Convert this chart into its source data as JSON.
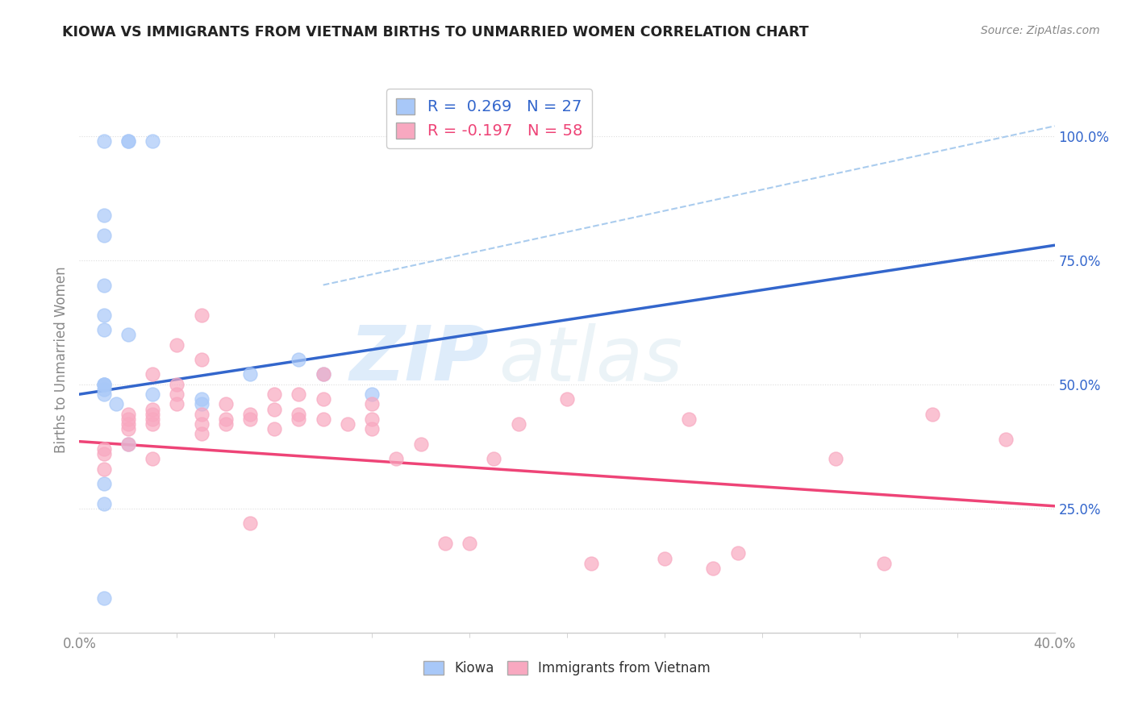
{
  "title": "KIOWA VS IMMIGRANTS FROM VIETNAM BIRTHS TO UNMARRIED WOMEN CORRELATION CHART",
  "source": "Source: ZipAtlas.com",
  "ylabel": "Births to Unmarried Women",
  "right_yticks": [
    "25.0%",
    "50.0%",
    "75.0%",
    "100.0%"
  ],
  "right_ytick_vals": [
    0.25,
    0.5,
    0.75,
    1.0
  ],
  "kiowa_color": "#a8c8f8",
  "vietnam_color": "#f8a8c0",
  "kiowa_line_color": "#3366cc",
  "vietnam_line_color": "#ee4477",
  "dashed_line_color": "#aaccee",
  "watermark_text": "ZIP",
  "watermark_text2": "atlas",
  "kiowa_x": [
    0.01,
    0.02,
    0.02,
    0.03,
    0.01,
    0.01,
    0.01,
    0.01,
    0.01,
    0.02,
    0.01,
    0.01,
    0.01,
    0.01,
    0.01,
    0.03,
    0.05,
    0.05,
    0.07,
    0.09,
    0.1,
    0.12,
    0.015,
    0.02,
    0.01,
    0.01,
    0.01
  ],
  "kiowa_y": [
    0.99,
    0.99,
    0.99,
    0.99,
    0.84,
    0.8,
    0.7,
    0.64,
    0.61,
    0.6,
    0.5,
    0.5,
    0.5,
    0.49,
    0.48,
    0.48,
    0.47,
    0.46,
    0.52,
    0.55,
    0.52,
    0.48,
    0.46,
    0.38,
    0.3,
    0.26,
    0.07
  ],
  "vietnam_x": [
    0.01,
    0.01,
    0.01,
    0.02,
    0.02,
    0.02,
    0.02,
    0.02,
    0.03,
    0.03,
    0.03,
    0.03,
    0.03,
    0.03,
    0.04,
    0.04,
    0.04,
    0.04,
    0.05,
    0.05,
    0.05,
    0.05,
    0.05,
    0.06,
    0.06,
    0.06,
    0.07,
    0.07,
    0.07,
    0.08,
    0.08,
    0.08,
    0.09,
    0.09,
    0.09,
    0.1,
    0.1,
    0.1,
    0.11,
    0.12,
    0.12,
    0.12,
    0.13,
    0.14,
    0.15,
    0.16,
    0.17,
    0.18,
    0.2,
    0.21,
    0.24,
    0.25,
    0.26,
    0.27,
    0.31,
    0.33,
    0.35,
    0.38
  ],
  "vietnam_y": [
    0.37,
    0.36,
    0.33,
    0.44,
    0.43,
    0.42,
    0.41,
    0.38,
    0.52,
    0.45,
    0.44,
    0.43,
    0.42,
    0.35,
    0.58,
    0.5,
    0.48,
    0.46,
    0.64,
    0.55,
    0.44,
    0.42,
    0.4,
    0.46,
    0.43,
    0.42,
    0.44,
    0.43,
    0.22,
    0.48,
    0.45,
    0.41,
    0.48,
    0.44,
    0.43,
    0.52,
    0.47,
    0.43,
    0.42,
    0.46,
    0.43,
    0.41,
    0.35,
    0.38,
    0.18,
    0.18,
    0.35,
    0.42,
    0.47,
    0.14,
    0.15,
    0.43,
    0.13,
    0.16,
    0.35,
    0.14,
    0.44,
    0.39
  ],
  "xlim": [
    0.0,
    0.4
  ],
  "ylim": [
    0.0,
    1.1
  ],
  "kiowa_line_x": [
    0.0,
    0.4
  ],
  "kiowa_line_y": [
    0.48,
    0.78
  ],
  "vietnam_line_x": [
    0.0,
    0.4
  ],
  "vietnam_line_y": [
    0.385,
    0.255
  ],
  "dash_line_x": [
    0.1,
    0.4
  ],
  "dash_line_y": [
    0.7,
    1.02
  ],
  "background_color": "#ffffff",
  "grid_color": "#dddddd",
  "spine_color": "#cccccc",
  "tick_color": "#888888",
  "title_color": "#222222",
  "source_color": "#888888"
}
